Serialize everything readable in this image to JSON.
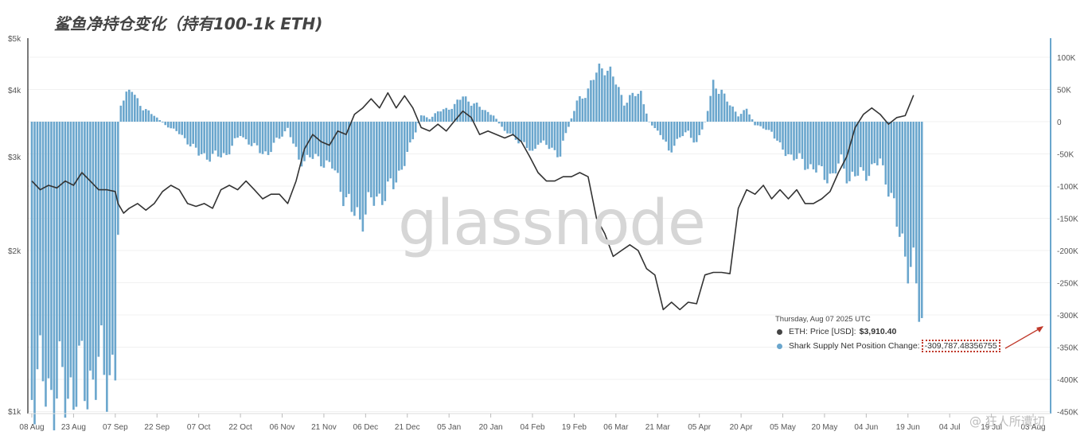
{
  "title": "鲨鱼净持仓变化（持有100-1k ETH)",
  "watermark": "glassnode",
  "credit": "@ 狂人所遭切",
  "tooltip": {
    "date": "Thursday, Aug 07 2025 UTC",
    "price_label": "ETH: Price [USD]:",
    "price_value": "$3,910.40",
    "change_label": "Shark Supply Net Position Change:",
    "change_value": "-309,787.48356755"
  },
  "colors": {
    "price_line": "#333333",
    "bars": "#6aa6cd",
    "right_axis": "#6aa6cd",
    "highlight": "#c0392b"
  },
  "chart_data": {
    "type": "bar+line",
    "x_range": [
      "2024-08-08",
      "2025-08-07"
    ],
    "x_ticks": [
      "08 Aug",
      "23 Aug",
      "07 Sep",
      "22 Sep",
      "07 Oct",
      "22 Oct",
      "06 Nov",
      "21 Nov",
      "06 Dec",
      "21 Dec",
      "05 Jan",
      "20 Jan",
      "04 Feb",
      "19 Feb",
      "06 Mar",
      "21 Mar",
      "05 Apr",
      "20 Apr",
      "05 May",
      "20 May",
      "04 Jun",
      "19 Jun",
      "04 Jul",
      "19 Jul",
      "03 Aug"
    ],
    "left_axis": {
      "scale": "log",
      "ticks": [
        "$1k",
        "$2k",
        "$3k",
        "$4k",
        "$5k"
      ],
      "values": [
        1000,
        2000,
        3000,
        4000,
        5000
      ]
    },
    "right_axis": {
      "ticks": [
        "100K",
        "50K",
        "0",
        "-50K",
        "-100K",
        "-150K",
        "-200K",
        "-250K",
        "-300K",
        "-350K",
        "-400K",
        "-450K"
      ],
      "values": [
        100000,
        50000,
        0,
        -50000,
        -100000,
        -150000,
        -200000,
        -250000,
        -300000,
        -350000,
        -400000,
        -450000
      ]
    },
    "series": [
      {
        "name": "ETH: Price [USD]",
        "kind": "line",
        "points": [
          [
            0,
            2700
          ],
          [
            3,
            2600
          ],
          [
            6,
            2650
          ],
          [
            9,
            2620
          ],
          [
            12,
            2700
          ],
          [
            15,
            2650
          ],
          [
            18,
            2800
          ],
          [
            21,
            2700
          ],
          [
            24,
            2600
          ],
          [
            27,
            2600
          ],
          [
            30,
            2580
          ],
          [
            31,
            2450
          ],
          [
            33,
            2350
          ],
          [
            35,
            2400
          ],
          [
            38,
            2450
          ],
          [
            41,
            2380
          ],
          [
            44,
            2450
          ],
          [
            47,
            2580
          ],
          [
            50,
            2650
          ],
          [
            53,
            2600
          ],
          [
            56,
            2450
          ],
          [
            59,
            2420
          ],
          [
            62,
            2450
          ],
          [
            65,
            2400
          ],
          [
            68,
            2600
          ],
          [
            71,
            2650
          ],
          [
            74,
            2600
          ],
          [
            77,
            2700
          ],
          [
            80,
            2600
          ],
          [
            83,
            2500
          ],
          [
            86,
            2550
          ],
          [
            89,
            2550
          ],
          [
            92,
            2450
          ],
          [
            95,
            2700
          ],
          [
            98,
            3100
          ],
          [
            101,
            3300
          ],
          [
            104,
            3200
          ],
          [
            107,
            3150
          ],
          [
            110,
            3350
          ],
          [
            113,
            3300
          ],
          [
            116,
            3600
          ],
          [
            119,
            3700
          ],
          [
            122,
            3850
          ],
          [
            125,
            3700
          ],
          [
            128,
            3950
          ],
          [
            131,
            3700
          ],
          [
            134,
            3900
          ],
          [
            137,
            3700
          ],
          [
            140,
            3400
          ],
          [
            143,
            3350
          ],
          [
            146,
            3450
          ],
          [
            149,
            3350
          ],
          [
            152,
            3500
          ],
          [
            155,
            3650
          ],
          [
            158,
            3550
          ],
          [
            161,
            3300
          ],
          [
            164,
            3350
          ],
          [
            167,
            3300
          ],
          [
            170,
            3250
          ],
          [
            173,
            3300
          ],
          [
            176,
            3200
          ],
          [
            179,
            3000
          ],
          [
            182,
            2800
          ],
          [
            185,
            2700
          ],
          [
            188,
            2700
          ],
          [
            191,
            2750
          ],
          [
            194,
            2750
          ],
          [
            197,
            2800
          ],
          [
            200,
            2750
          ],
          [
            203,
            2300
          ],
          [
            206,
            2150
          ],
          [
            209,
            1950
          ],
          [
            212,
            2000
          ],
          [
            215,
            2050
          ],
          [
            218,
            2000
          ],
          [
            221,
            1850
          ],
          [
            224,
            1800
          ],
          [
            227,
            1550
          ],
          [
            230,
            1600
          ],
          [
            233,
            1550
          ],
          [
            236,
            1600
          ],
          [
            239,
            1590
          ],
          [
            242,
            1800
          ],
          [
            245,
            1820
          ],
          [
            248,
            1820
          ],
          [
            251,
            1810
          ],
          [
            254,
            2400
          ],
          [
            257,
            2600
          ],
          [
            260,
            2550
          ],
          [
            263,
            2650
          ],
          [
            266,
            2500
          ],
          [
            269,
            2600
          ],
          [
            272,
            2500
          ],
          [
            275,
            2600
          ],
          [
            278,
            2450
          ],
          [
            281,
            2450
          ],
          [
            284,
            2500
          ],
          [
            287,
            2580
          ],
          [
            290,
            2800
          ],
          [
            293,
            3000
          ],
          [
            296,
            3400
          ],
          [
            299,
            3600
          ],
          [
            302,
            3700
          ],
          [
            305,
            3600
          ],
          [
            308,
            3450
          ],
          [
            311,
            3550
          ],
          [
            314,
            3580
          ],
          [
            317,
            3910
          ]
        ]
      },
      {
        "name": "Shark Supply Net Position Change",
        "kind": "bar",
        "anchors": [
          [
            0,
            -400000
          ],
          [
            10,
            -420000
          ],
          [
            20,
            -400000
          ],
          [
            30,
            -380000
          ],
          [
            32,
            30000
          ],
          [
            36,
            50000
          ],
          [
            40,
            20000
          ],
          [
            44,
            10000
          ],
          [
            48,
            -5000
          ],
          [
            52,
            -15000
          ],
          [
            56,
            -30000
          ],
          [
            60,
            -50000
          ],
          [
            65,
            -55000
          ],
          [
            70,
            -50000
          ],
          [
            75,
            -20000
          ],
          [
            80,
            -40000
          ],
          [
            85,
            -50000
          ],
          [
            88,
            -30000
          ],
          [
            92,
            -10000
          ],
          [
            96,
            -60000
          ],
          [
            100,
            -55000
          ],
          [
            104,
            -60000
          ],
          [
            108,
            -70000
          ],
          [
            112,
            -110000
          ],
          [
            115,
            -140000
          ],
          [
            118,
            -150000
          ],
          [
            121,
            -130000
          ],
          [
            124,
            -120000
          ],
          [
            127,
            -110000
          ],
          [
            130,
            -100000
          ],
          [
            133,
            -70000
          ],
          [
            136,
            -40000
          ],
          [
            140,
            10000
          ],
          [
            143,
            5000
          ],
          [
            146,
            15000
          ],
          [
            149,
            20000
          ],
          [
            152,
            25000
          ],
          [
            155,
            40000
          ],
          [
            158,
            30000
          ],
          [
            162,
            20000
          ],
          [
            166,
            10000
          ],
          [
            170,
            -15000
          ],
          [
            174,
            -25000
          ],
          [
            178,
            -40000
          ],
          [
            180,
            -50000
          ],
          [
            182,
            -30000
          ],
          [
            186,
            -40000
          ],
          [
            190,
            -50000
          ],
          [
            192,
            -20000
          ],
          [
            196,
            30000
          ],
          [
            200,
            50000
          ],
          [
            203,
            75000
          ],
          [
            206,
            90000
          ],
          [
            210,
            60000
          ],
          [
            213,
            30000
          ],
          [
            216,
            40000
          ],
          [
            219,
            45000
          ],
          [
            222,
            0
          ],
          [
            226,
            -20000
          ],
          [
            229,
            -45000
          ],
          [
            233,
            -25000
          ],
          [
            236,
            -15000
          ],
          [
            239,
            -35000
          ],
          [
            242,
            0
          ],
          [
            245,
            55000
          ],
          [
            248,
            50000
          ],
          [
            251,
            25000
          ],
          [
            254,
            10000
          ],
          [
            257,
            20000
          ],
          [
            260,
            -5000
          ],
          [
            263,
            -10000
          ],
          [
            266,
            -15000
          ],
          [
            269,
            -40000
          ],
          [
            272,
            -50000
          ],
          [
            276,
            -60000
          ],
          [
            280,
            -70000
          ],
          [
            284,
            -80000
          ],
          [
            288,
            -85000
          ],
          [
            291,
            -60000
          ],
          [
            294,
            -90000
          ],
          [
            298,
            -80000
          ],
          [
            302,
            -75000
          ],
          [
            305,
            -60000
          ],
          [
            308,
            -100000
          ],
          [
            311,
            -160000
          ],
          [
            314,
            -200000
          ],
          [
            317,
            -240000
          ],
          [
            320,
            -310000
          ]
        ]
      }
    ]
  }
}
